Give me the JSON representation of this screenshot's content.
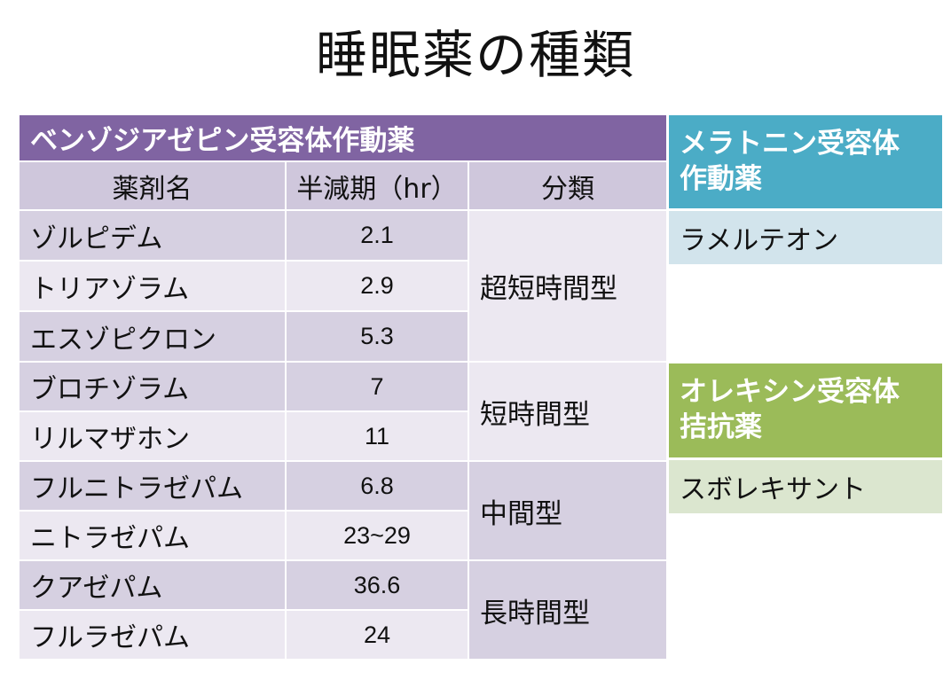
{
  "title": "睡眠薬の種類",
  "benzo": {
    "header": "ベンゾジアゼピン受容体作動薬",
    "columns": [
      "薬剤名",
      "半減期（hr）",
      "分類"
    ],
    "rows": [
      {
        "name": "ゾルピデム",
        "half_life": "2.1"
      },
      {
        "name": "トリアゾラム",
        "half_life": "2.9"
      },
      {
        "name": "エスゾピクロン",
        "half_life": "5.3"
      },
      {
        "name": "ブロチゾラム",
        "half_life": "7"
      },
      {
        "name": "リルマザホン",
        "half_life": "11"
      },
      {
        "name": "フルニトラゼパム",
        "half_life": "6.8"
      },
      {
        "name": "ニトラゼパム",
        "half_life": "23~29"
      },
      {
        "name": "クアゼパム",
        "half_life": "36.6"
      },
      {
        "name": "フルラゼパム",
        "half_life": "24"
      }
    ],
    "categories": [
      "超短時間型",
      "短時間型",
      "中間型",
      "長時間型"
    ]
  },
  "melatonin": {
    "header_line1": "メラトニン受容体",
    "header_line2": "作動薬",
    "item": "ラメルテオン",
    "header_color": "#4bacc6"
  },
  "orexin": {
    "header_line1": "オレキシン受容体",
    "header_line2": "拮抗薬",
    "item": "スボレキサント",
    "header_color": "#9bbb59"
  },
  "colors": {
    "benzo_header": "#8064a2"
  }
}
